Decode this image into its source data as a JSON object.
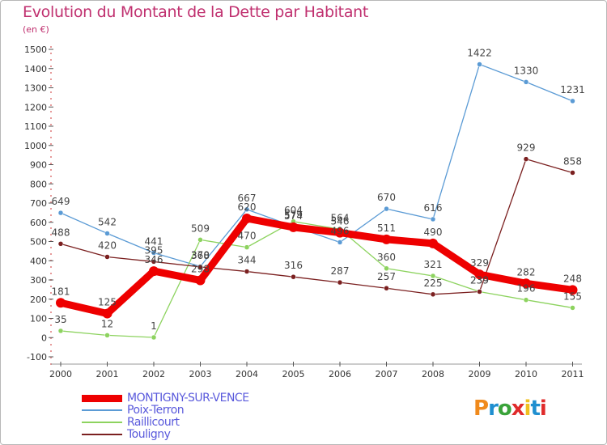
{
  "header": {
    "title": "Evolution du Montant de la Dette par Habitant",
    "unit": "(en €)"
  },
  "logo": {
    "text": "Proxiti",
    "letter_colors": [
      "#f08a1c",
      "#1f8fd0",
      "#3aa33a",
      "#e02b2b",
      "#f0c020",
      "#1f8fd0",
      "#e02b2b"
    ]
  },
  "chart_data": {
    "type": "line",
    "x": [
      "2000",
      "2001",
      "2002",
      "2003",
      "2004",
      "2005",
      "2006",
      "2007",
      "2008",
      "2009",
      "2010",
      "2011"
    ],
    "ylim": [
      -100,
      1500
    ],
    "yticks": [
      "-100",
      "0",
      "100",
      "200",
      "300",
      "400",
      "500",
      "600",
      "700",
      "800",
      "900",
      "1000",
      "1100",
      "1200",
      "1300",
      "1400",
      "1500"
    ],
    "grid": false,
    "legend_position": "bottom-left",
    "series": [
      {
        "name": "MONTIGNY-SUR-VENCE",
        "color": "#ee0000",
        "values": [
          181,
          125,
          346,
          298,
          620,
          574,
          546,
          511,
          490,
          329,
          282,
          248
        ]
      },
      {
        "name": "Poix-Terron",
        "color": "#5b9bd5",
        "values": [
          649,
          542,
          441,
          370,
          667,
          579,
          496,
          670,
          616,
          1422,
          1330,
          1231
        ]
      },
      {
        "name": "Raillicourt",
        "color": "#8dd35f",
        "values": [
          35,
          12,
          1,
          509,
          470,
          604,
          564,
          360,
          321,
          239,
          196,
          155
        ]
      },
      {
        "name": "Touligny",
        "color": "#7b2020",
        "values": [
          488,
          420,
          395,
          368,
          344,
          316,
          287,
          257,
          225,
          239,
          929,
          858
        ]
      }
    ],
    "data_labels": [
      [
        "181",
        "125",
        "346",
        "298",
        "620",
        "574",
        "546",
        "511",
        "490",
        "329",
        "282",
        "248"
      ],
      [
        "649",
        "542",
        "441",
        "370",
        "667",
        "579",
        "496",
        "670",
        "616",
        "1422",
        "1330",
        "1231"
      ],
      [
        "35",
        "12",
        "1",
        "509",
        "470",
        "604",
        "564",
        "360",
        "321",
        "239",
        "196",
        "155"
      ],
      [
        "488",
        "420",
        "395",
        "368",
        "344",
        "316",
        "287",
        "257",
        "225",
        "239",
        "929",
        "858"
      ]
    ]
  }
}
